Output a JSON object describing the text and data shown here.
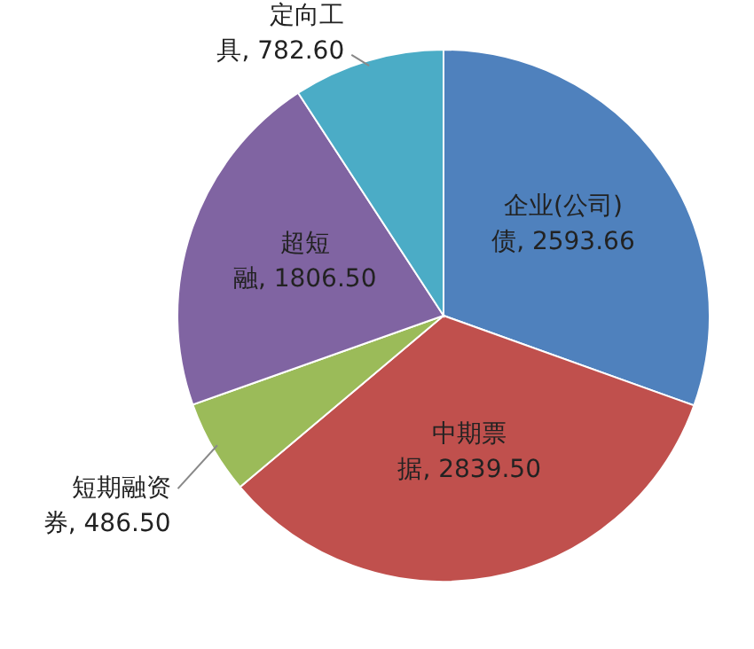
{
  "chart_data": {
    "type": "pie",
    "categories": [
      "企业(公司)债",
      "中期票据",
      "短期融资券",
      "超短融",
      "定向工具"
    ],
    "values": [
      2593.66,
      2839.5,
      486.5,
      1806.5,
      782.6
    ],
    "value_labels": [
      "2593.66",
      "2839.50",
      "486.50",
      "1806.50",
      "782.60"
    ],
    "colors": [
      "#4f81bd",
      "#c0504d",
      "#9bbb59",
      "#8064a2",
      "#4bacc6"
    ]
  }
}
